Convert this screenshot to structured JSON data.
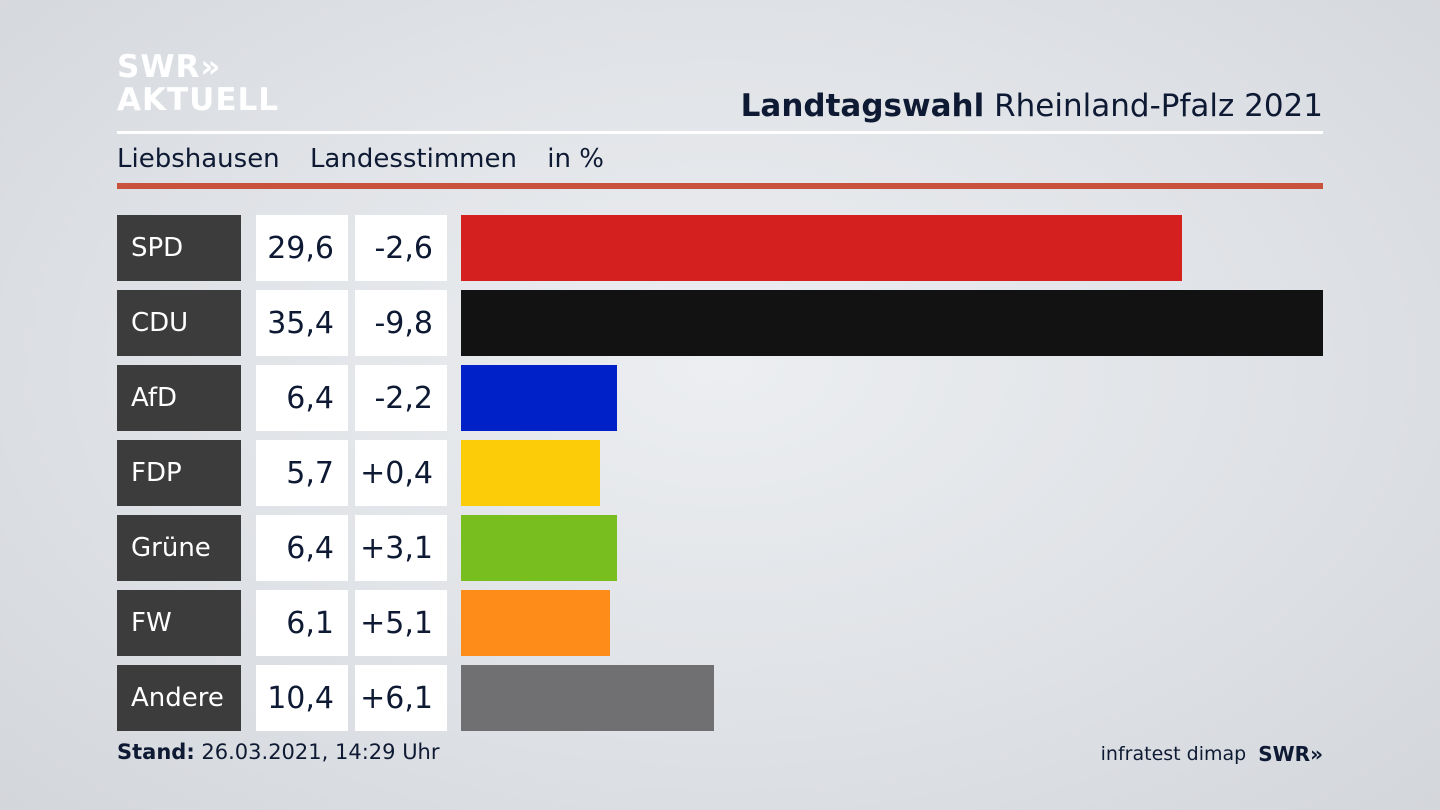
{
  "header": {
    "logo_line1": "SWR»",
    "logo_line2": "AKTUELL",
    "title_bold": "Landtagswahl",
    "title_rest": "Rheinland-Pfalz 2021",
    "location": "Liebshausen",
    "measure": "Landesstimmen",
    "unit": "in %"
  },
  "chart_data": {
    "type": "bar",
    "orientation": "horizontal",
    "categories": [
      "SPD",
      "CDU",
      "AfD",
      "FDP",
      "Grüne",
      "FW",
      "Andere"
    ],
    "values": [
      29.6,
      35.4,
      6.4,
      5.7,
      6.4,
      6.1,
      10.4
    ],
    "value_labels": [
      "29,6",
      "35,4",
      "6,4",
      "5,7",
      "6,4",
      "6,1",
      "10,4"
    ],
    "change_labels": [
      "-2,6",
      "-9,8",
      "-2,2",
      "+0,4",
      "+3,1",
      "+5,1",
      "+6,1"
    ],
    "changes": [
      -2.6,
      -9.8,
      -2.2,
      0.4,
      3.1,
      5.1,
      6.1
    ],
    "colors": [
      "#d52020",
      "#121212",
      "#0020c8",
      "#fdcc08",
      "#78be1e",
      "#fd8c18",
      "#707072"
    ],
    "xlim": [
      0,
      35.4
    ]
  },
  "footer": {
    "stand_label": "Stand:",
    "stand_value": "26.03.2021, 14:29 Uhr",
    "source": "infratest dimap",
    "brand": "SWR»"
  }
}
